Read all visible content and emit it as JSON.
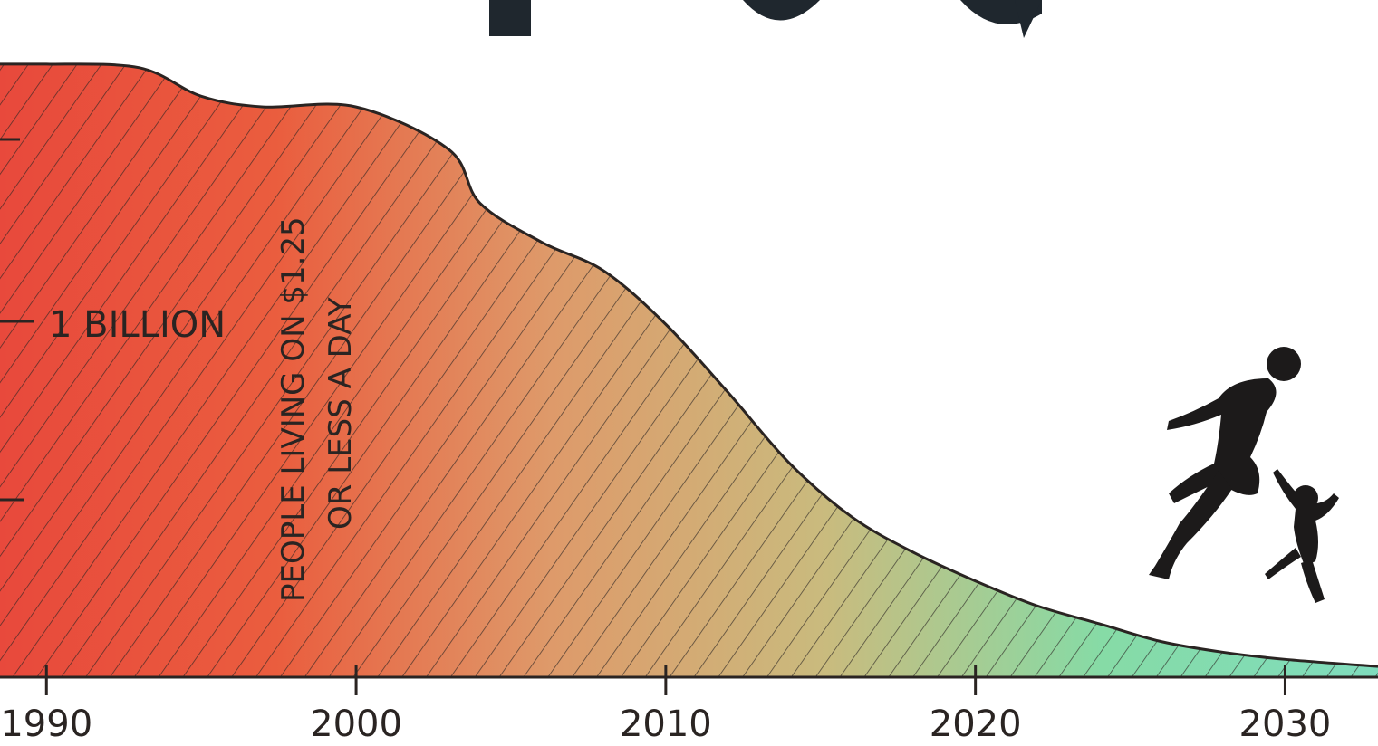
{
  "chart_data": {
    "type": "area",
    "x": [
      1990,
      1993,
      1995,
      1997,
      2000,
      2003,
      2004,
      2006,
      2008,
      2010,
      2012,
      2014,
      2016,
      2018,
      2020,
      2022,
      2024,
      2026,
      2028,
      2030,
      2033
    ],
    "series": [
      {
        "values": [
          1.72,
          1.71,
          1.63,
          1.6,
          1.6,
          1.48,
          1.33,
          1.22,
          1.14,
          0.99,
          0.8,
          0.6,
          0.45,
          0.35,
          0.27,
          0.2,
          0.15,
          0.1,
          0.07,
          0.05,
          0.03
        ]
      }
    ],
    "x_ticks": [
      "1990",
      "2000",
      "2010",
      "2020",
      "2030"
    ],
    "y_tick_label": "1 BILLION",
    "annotation_lines": [
      "PEOPLE LIVING ON $1.25",
      "OR LESS A DAY"
    ],
    "xlim": [
      1988.5,
      2033
    ],
    "ylim": [
      0,
      1.9
    ],
    "grid": false,
    "legend": "none",
    "fill_gradient": [
      "#e8493c",
      "#ea5d3e",
      "#de9a6a",
      "#c9bb7e",
      "#86dba6",
      "#7fdcbd"
    ],
    "outline_color": "#2a2422"
  }
}
